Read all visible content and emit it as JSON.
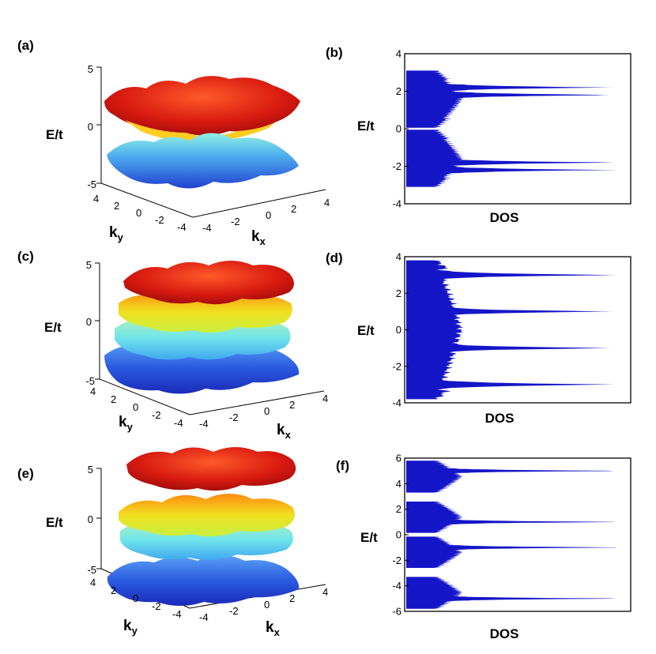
{
  "colors": {
    "dos_fill": "#1515c8",
    "band_red": "#d01010",
    "band_yellow": "#e6e61a",
    "band_cyan": "#7fe6e0",
    "band_blue": "#3050d8"
  },
  "chart_data": [
    {
      "panel": "(a)",
      "type": "surface3d",
      "zlabel": "E/t",
      "xlabel": "k",
      "xlabel_sub": "x",
      "ylabel": "k",
      "ylabel_sub": "y",
      "zticks": [
        "5",
        "0",
        "-5"
      ],
      "kx_ticks": [
        "-4",
        "-2",
        "0",
        "2",
        "4"
      ],
      "ky_ticks": [
        "4",
        "2",
        "0",
        "-2",
        "-4"
      ],
      "bands": [
        {
          "color": "red",
          "E_range": [
            0.5,
            3.0
          ]
        },
        {
          "color": "blue",
          "E_range": [
            -3.0,
            -0.5
          ]
        }
      ]
    },
    {
      "panel": "(b)",
      "type": "area",
      "xlabel": "DOS",
      "ylabel": "E/t",
      "ylim": [
        -4,
        4
      ],
      "yticks": [
        "4",
        "2",
        "0",
        "-2",
        "-4"
      ],
      "bands": [
        {
          "E_range": [
            0.05,
            3.1
          ],
          "peaks": [
            {
              "E": 1.8,
              "w": 0.82
            },
            {
              "E": 2.2,
              "w": 0.78
            }
          ]
        },
        {
          "E_range": [
            -3.1,
            -0.05
          ],
          "peaks": [
            {
              "E": -1.8,
              "w": 0.82
            },
            {
              "E": -2.2,
              "w": 0.78
            }
          ]
        }
      ]
    },
    {
      "panel": "(c)",
      "type": "surface3d",
      "zlabel": "E/t",
      "xlabel": "k",
      "xlabel_sub": "x",
      "ylabel": "k",
      "ylabel_sub": "y",
      "zticks": [
        "5",
        "0",
        "-5"
      ],
      "kx_ticks": [
        "-4",
        "-2",
        "0",
        "2",
        "4"
      ],
      "ky_ticks": [
        "4",
        "2",
        "0",
        "-2",
        "-4"
      ],
      "bands": [
        {
          "color": "red",
          "E_range": [
            1.8,
            3.8
          ]
        },
        {
          "color": "yellow",
          "E_range": [
            0.0,
            2.0
          ]
        },
        {
          "color": "cyan",
          "E_range": [
            -2.0,
            0.0
          ]
        },
        {
          "color": "blue",
          "E_range": [
            -3.8,
            -1.8
          ]
        }
      ]
    },
    {
      "panel": "(d)",
      "type": "area",
      "xlabel": "DOS",
      "ylabel": "E/t",
      "ylim": [
        -4,
        4
      ],
      "yticks": [
        "4",
        "2",
        "0",
        "-2",
        "-4"
      ],
      "bands": [
        {
          "E_range": [
            -3.8,
            3.8
          ],
          "peaks": [
            {
              "E": 3.0,
              "w": 0.9
            },
            {
              "E": 1.0,
              "w": 0.9
            },
            {
              "E": -1.0,
              "w": 0.9
            },
            {
              "E": -3.0,
              "w": 0.9
            }
          ]
        }
      ]
    },
    {
      "panel": "(e)",
      "type": "surface3d",
      "zlabel": "E/t",
      "xlabel": "k",
      "xlabel_sub": "x",
      "ylabel": "k",
      "ylabel_sub": "y",
      "zticks": [
        "5",
        "0",
        "-5"
      ],
      "kx_ticks": [
        "-4",
        "-2",
        "0",
        "2",
        "4"
      ],
      "ky_ticks": [
        "4",
        "2",
        "0",
        "-2",
        "-4"
      ],
      "bands": [
        {
          "color": "red",
          "E_range": [
            3.3,
            5.8
          ]
        },
        {
          "color": "yellow",
          "E_range": [
            -0.2,
            2.5
          ]
        },
        {
          "color": "cyan",
          "E_range": [
            -2.5,
            0.2
          ]
        },
        {
          "color": "blue",
          "E_range": [
            -5.8,
            -3.3
          ]
        }
      ]
    },
    {
      "panel": "(f)",
      "type": "area",
      "xlabel": "DOS",
      "ylabel": "E/t",
      "ylim": [
        -6,
        6
      ],
      "yticks": [
        "6",
        "4",
        "2",
        "0",
        "-2",
        "-4",
        "-6"
      ],
      "bands": [
        {
          "E_range": [
            3.3,
            5.8
          ],
          "peaks": [
            {
              "E": 5.0,
              "w": 0.9
            }
          ]
        },
        {
          "E_range": [
            0.15,
            2.6
          ],
          "peaks": [
            {
              "E": 1.0,
              "w": 0.9
            }
          ]
        },
        {
          "E_range": [
            -2.6,
            -0.15
          ],
          "peaks": [
            {
              "E": -1.0,
              "w": 0.9
            }
          ]
        },
        {
          "E_range": [
            -5.8,
            -3.3
          ],
          "peaks": [
            {
              "E": -5.0,
              "w": 0.9
            }
          ]
        }
      ]
    }
  ]
}
